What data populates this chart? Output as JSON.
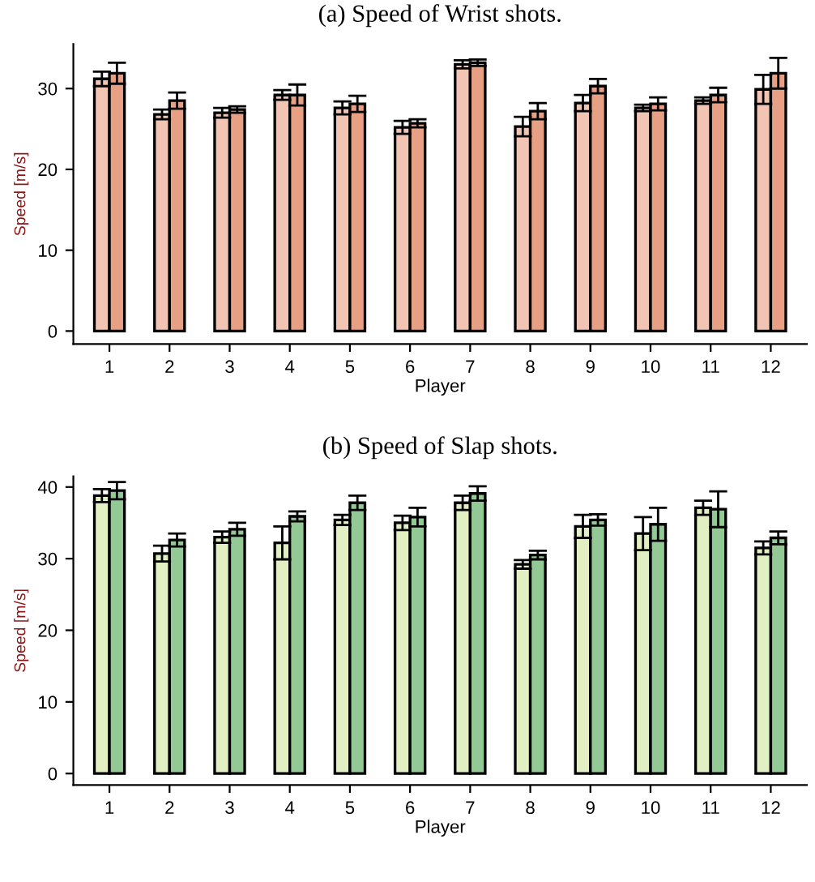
{
  "chart_data": [
    {
      "type": "bar",
      "title": "(a) Speed of Wrist shots.",
      "xlabel": "Player",
      "ylabel": "Speed [m/s]",
      "categories": [
        "1",
        "2",
        "3",
        "4",
        "5",
        "6",
        "7",
        "8",
        "9",
        "10",
        "11",
        "12"
      ],
      "ylim": [
        -1.6,
        35.5
      ],
      "yticks": [
        0,
        10,
        20,
        30
      ],
      "grid": false,
      "series": [
        {
          "color": "#f2c4b4",
          "values": [
            31.2,
            26.8,
            27.0,
            29.2,
            27.6,
            25.2,
            33.0,
            25.3,
            28.2,
            27.6,
            28.5,
            29.9
          ],
          "errors": [
            0.9,
            0.6,
            0.6,
            0.6,
            0.8,
            0.8,
            0.5,
            1.2,
            1.0,
            0.4,
            0.4,
            1.8
          ]
        },
        {
          "color": "#e8a084",
          "values": [
            31.9,
            28.5,
            27.4,
            29.2,
            28.1,
            25.7,
            33.2,
            27.2,
            30.3,
            28.1,
            29.2,
            31.9
          ],
          "errors": [
            1.3,
            1.0,
            0.4,
            1.3,
            1.0,
            0.5,
            0.4,
            1.0,
            0.9,
            0.8,
            0.9,
            1.9
          ]
        }
      ]
    },
    {
      "type": "bar",
      "title": "(b) Speed of Slap shots.",
      "xlabel": "Player",
      "ylabel": "Speed [m/s]",
      "categories": [
        "1",
        "2",
        "3",
        "4",
        "5",
        "6",
        "7",
        "8",
        "9",
        "10",
        "11",
        "12"
      ],
      "ylim": [
        -1.6,
        41.5
      ],
      "yticks": [
        0,
        10,
        20,
        30,
        40
      ],
      "grid": false,
      "series": [
        {
          "color": "#e2efc3",
          "values": [
            38.8,
            30.7,
            33.0,
            32.2,
            35.4,
            35.0,
            37.8,
            29.2,
            34.5,
            33.5,
            37.1,
            31.5
          ],
          "errors": [
            0.9,
            1.1,
            0.8,
            2.3,
            0.7,
            1.0,
            1.0,
            0.6,
            1.6,
            2.3,
            1.0,
            0.9
          ]
        },
        {
          "color": "#93c994",
          "values": [
            39.5,
            32.6,
            34.1,
            35.9,
            37.8,
            35.8,
            39.1,
            30.5,
            35.4,
            34.8,
            36.9,
            32.9
          ],
          "errors": [
            1.2,
            0.9,
            0.9,
            0.7,
            1.0,
            1.3,
            1.0,
            0.6,
            0.8,
            2.3,
            2.5,
            0.9
          ]
        }
      ]
    }
  ]
}
